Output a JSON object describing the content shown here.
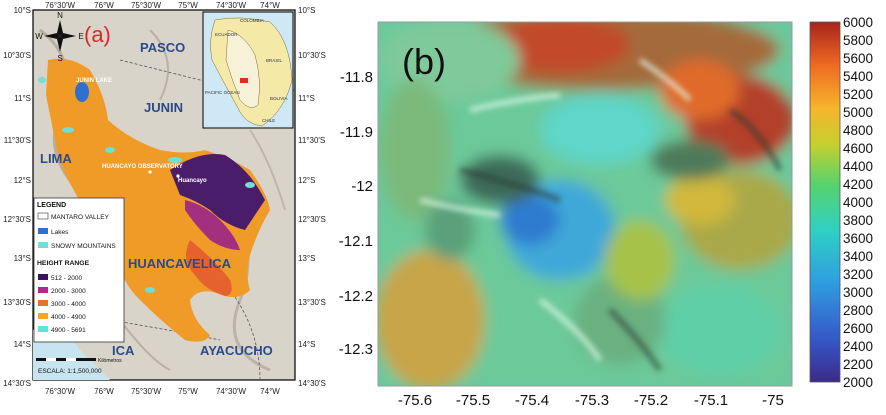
{
  "panel_a": {
    "label": "(a)",
    "lon_ticks_top": [
      "76°30'W",
      "76°W",
      "75°30'W",
      "75°W",
      "74°30'W",
      "74°W"
    ],
    "lon_ticks_bottom": [
      "76°30'W",
      "76°W",
      "75°30'W",
      "75°W",
      "74°30'W",
      "74°W"
    ],
    "lat_ticks_left": [
      "10°S",
      "10°30'S",
      "11°S",
      "11°30'S",
      "12°S",
      "12°30'S",
      "13°S",
      "13°30'S",
      "14°S",
      "14°30'S"
    ],
    "lat_ticks_right": [
      "10°S",
      "10°30'S",
      "11°S",
      "11°30'S",
      "12°S",
      "12°30'S",
      "13°S",
      "13°30'S",
      "14°S",
      "14°30'S"
    ],
    "compass": {
      "n": "N",
      "s": "S",
      "e": "E",
      "w": "W"
    },
    "regions": {
      "pasco": "PASCO",
      "junin": "JUNIN",
      "lima": "LIMA",
      "huancavelica": "HUANCAVELICA",
      "ica": "ICA",
      "ayacucho": "AYACUCHO"
    },
    "places": {
      "junin_lake": "JUNIN LAKE",
      "observatory": "HUANCAYO OBSERVATORY",
      "huancayo": "Huancayo"
    },
    "inset": {
      "colombia": "COLOMBIA",
      "ecuador": "ECUADOR",
      "brasil": "BRASIL",
      "bolivia": "BOLIVIA",
      "chile": "CHILE",
      "pacific": "PACIFIC OCEAN"
    },
    "legend": {
      "title": "LEGEND",
      "items": [
        {
          "label": "MANTARO VALLEY",
          "color": "#ffffff"
        },
        {
          "label": "Lakes",
          "color": "#2f6fce"
        },
        {
          "label": "SNOWY MOUNTAINS",
          "color": "#6fe0d3"
        }
      ],
      "height_title": "HEIGHT RANGE",
      "heights": [
        {
          "label": "512 - 2000",
          "color": "#3a1264"
        },
        {
          "label": "2000 - 3000",
          "color": "#b5268c"
        },
        {
          "label": "3000 - 4000",
          "color": "#e8702a"
        },
        {
          "label": "4000 - 4900",
          "color": "#f5a623"
        },
        {
          "label": "4900 - 5691",
          "color": "#5fe3d6"
        }
      ]
    },
    "scale": {
      "label": "ESCALA: 1:1,500,000",
      "unit": "Kilómetros"
    }
  },
  "panel_b": {
    "label": "(b)",
    "x_ticks": [
      "-75.6",
      "-75.5",
      "-75.4",
      "-75.3",
      "-75.2",
      "-75.1",
      "-75"
    ],
    "y_ticks": [
      "-11.8",
      "-11.9",
      "-12",
      "-12.1",
      "-12.2",
      "-12.3"
    ],
    "colorbar_ticks": [
      "6000",
      "5800",
      "5600",
      "5400",
      "5200",
      "5000",
      "4800",
      "4600",
      "4400",
      "4200",
      "4000",
      "3800",
      "3600",
      "3400",
      "3200",
      "3000",
      "2800",
      "2600",
      "2400",
      "2200",
      "2000"
    ]
  }
}
